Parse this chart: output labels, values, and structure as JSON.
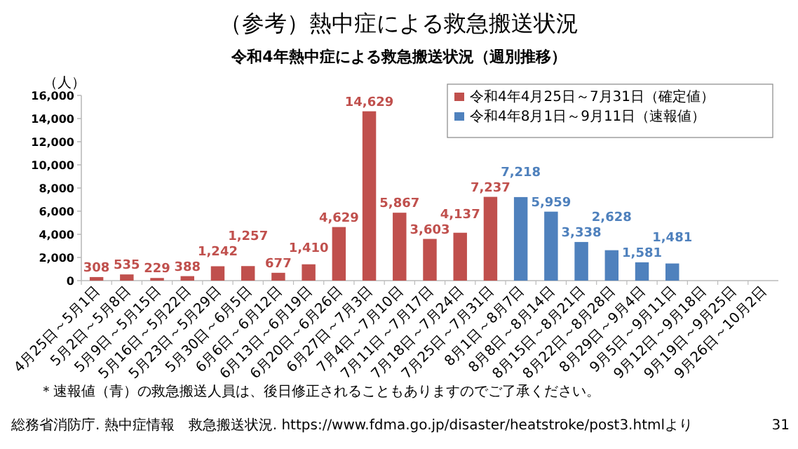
{
  "chart_data": {
    "type": "bar",
    "title": "（参考）熱中症による救急搬送状況",
    "subtitle": "令和4年熱中症による救急搬送状況（週別推移）",
    "ylabel": "（人）",
    "categories": [
      "4月25日～5月1日",
      "5月2日～5月8日",
      "5月9日～5月15日",
      "5月16日～5月22日",
      "5月23日～5月29日",
      "5月30日～6月5日",
      "6月6日～6月12日",
      "6月13日～6月19日",
      "6月20日～6月26日",
      "6月27日～7月3日",
      "7月4日～7月10日",
      "7月11日～7月17日",
      "7月18日～7月24日",
      "7月25日～7月31日",
      "8月1日～8月7日",
      "8月8日～8月14日",
      "8月15日～8月21日",
      "8月22日～8月28日",
      "8月29日～9月4日",
      "9月5日～9月11日",
      "9月12日～9月18日",
      "9月19日～9月25日",
      "9月26日～10月2日"
    ],
    "series": [
      {
        "name": "令和4年4月25日～7月31日（確定値）",
        "color": "#c0504d",
        "values": [
          308,
          535,
          229,
          388,
          1242,
          1257,
          677,
          1410,
          4629,
          14629,
          5867,
          3603,
          4137,
          7237,
          null,
          null,
          null,
          null,
          null,
          null,
          null,
          null,
          null
        ],
        "value_labels": [
          "308",
          "535",
          "229",
          "388",
          "1,242",
          "1,257",
          "677",
          "1,410",
          "4,629",
          "14,629",
          "5,867",
          "3,603",
          "4,137",
          "7,237",
          null,
          null,
          null,
          null,
          null,
          null,
          null,
          null,
          null
        ]
      },
      {
        "name": "令和4年8月1日～9月11日（速報値）",
        "color": "#4f81bd",
        "values": [
          null,
          null,
          null,
          null,
          null,
          null,
          null,
          null,
          null,
          null,
          null,
          null,
          null,
          null,
          7218,
          5959,
          3338,
          2628,
          1581,
          1481,
          null,
          null,
          null
        ],
        "value_labels": [
          null,
          null,
          null,
          null,
          null,
          null,
          null,
          null,
          null,
          null,
          null,
          null,
          null,
          null,
          "7,218",
          "5,959",
          "3,338",
          "2,628",
          "1,581",
          "1,481",
          null,
          null,
          null
        ]
      }
    ],
    "ylim": [
      0,
      16000
    ],
    "yticks": [
      0,
      {
        "value": 2000,
        "label": "2,000"
      },
      {
        "value": 4000,
        "label": "4,000"
      },
      {
        "value": 6000,
        "label": "6,000"
      },
      {
        "value": 8000,
        "label": "8,000"
      },
      {
        "value": 10000,
        "label": "10,000"
      },
      {
        "value": 12000,
        "label": "12,000"
      },
      {
        "value": 14000,
        "label": "14,000"
      },
      {
        "value": 16000,
        "label": "16,000"
      }
    ],
    "legend": "top right",
    "annotations": [
      "＊速報値（青）の救急搬送人員は、後日修正されることもありますのでご了承ください。",
      "総務省消防庁. 熱中症情報　救急搬送状況. https://www.fdma.go.jp/disaster/heatstroke/post3.htmlより",
      "31"
    ]
  }
}
